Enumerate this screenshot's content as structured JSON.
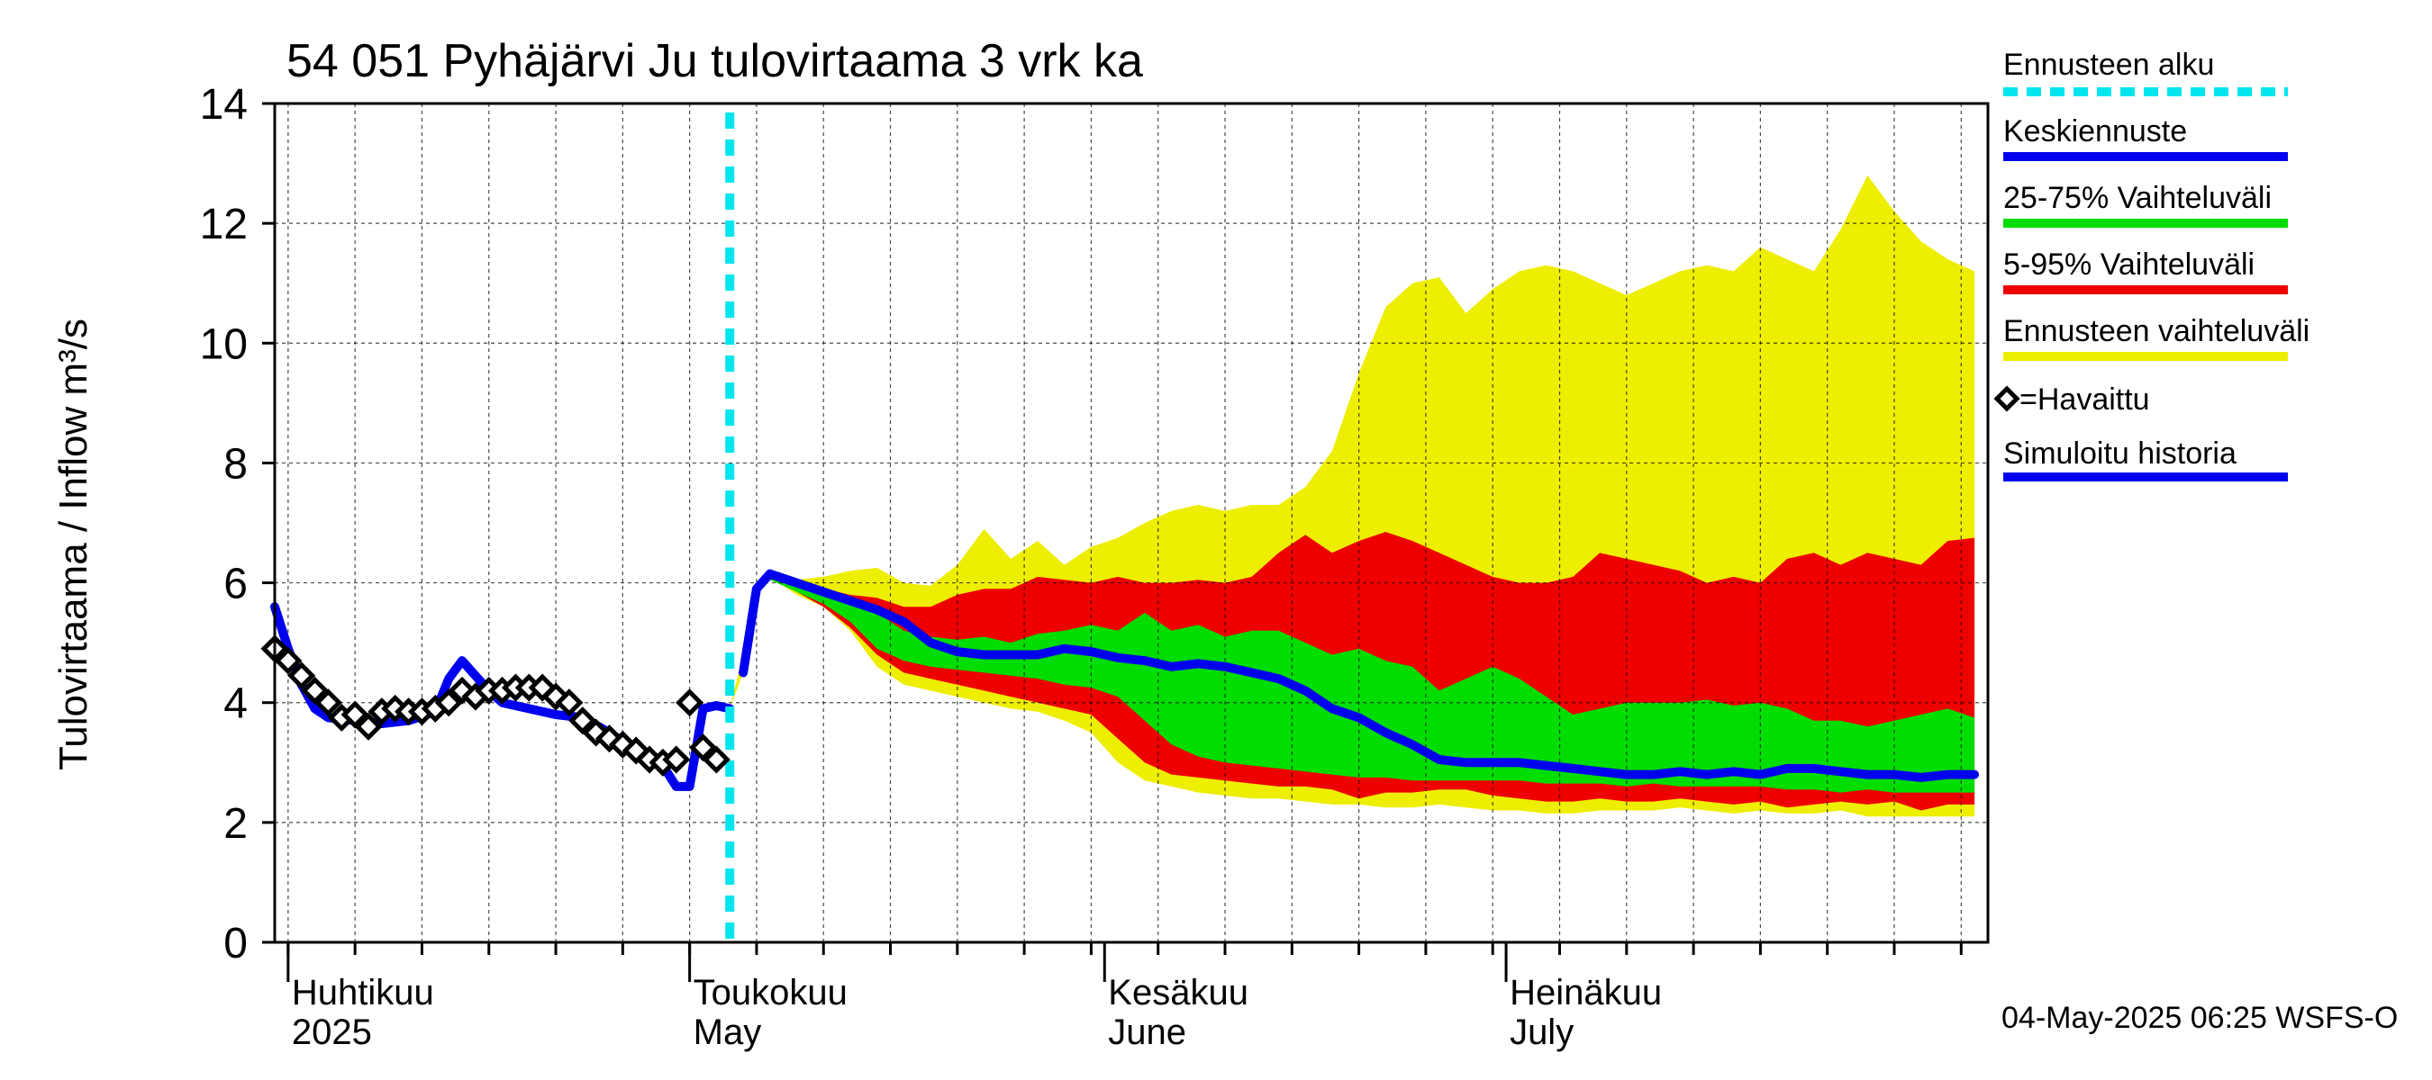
{
  "chart_data": {
    "type": "area",
    "title": "54 051 Pyhäjärvi Ju tulovirtaama 3 vrk ka",
    "ylabel": "Tulovirtaama / Inflow    m³/s",
    "xlabel": "",
    "ylim": [
      0,
      14
    ],
    "yticks": [
      0,
      2,
      4,
      6,
      8,
      10,
      12,
      14
    ],
    "xlim": [
      "2025-03-31",
      "2025-08-06"
    ],
    "grid": true,
    "forecast_start": "2025-05-04",
    "month_labels": [
      {
        "date": "2025-04-01",
        "fi": "Huhtikuu",
        "en": "2025"
      },
      {
        "date": "2025-05-01",
        "fi": "Toukokuu",
        "en": "May"
      },
      {
        "date": "2025-06-01",
        "fi": "Kesäkuu",
        "en": "June"
      },
      {
        "date": "2025-07-01",
        "fi": "Heinäkuu",
        "en": "July"
      }
    ],
    "footer": "04-May-2025 06:25 WSFS-O",
    "legend": {
      "placement": "right",
      "items": [
        {
          "label": "Ennusteen alku",
          "color": "#00e5ee",
          "style": "dashed"
        },
        {
          "label": "Keskiennuste",
          "color": "#0000ee",
          "style": "line"
        },
        {
          "label": "25-75% Vaihteluväli",
          "color": "#00dd00",
          "style": "line"
        },
        {
          "label": "5-95% Vaihteluväli",
          "color": "#ee0000",
          "style": "line"
        },
        {
          "label": "Ennusteen vaihteluväli",
          "color": "#eeee00",
          "style": "line"
        },
        {
          "label": "=Havaittu",
          "color": "#000000",
          "style": "diamond"
        },
        {
          "label": "Simuloitu historia",
          "color": "#0000ee",
          "style": "line"
        }
      ]
    },
    "series": [
      {
        "name": "Ennusteen vaihteluväli",
        "kind": "band",
        "color": "#eeee00",
        "x": [
          "2025-05-04",
          "2025-05-05",
          "2025-05-06",
          "2025-05-07",
          "2025-05-09",
          "2025-05-11",
          "2025-05-13",
          "2025-05-15",
          "2025-05-17",
          "2025-05-19",
          "2025-05-21",
          "2025-05-23",
          "2025-05-25",
          "2025-05-27",
          "2025-05-29",
          "2025-05-31",
          "2025-06-02",
          "2025-06-04",
          "2025-06-06",
          "2025-06-08",
          "2025-06-10",
          "2025-06-12",
          "2025-06-14",
          "2025-06-16",
          "2025-06-18",
          "2025-06-20",
          "2025-06-22",
          "2025-06-24",
          "2025-06-26",
          "2025-06-28",
          "2025-06-30",
          "2025-07-02",
          "2025-07-04",
          "2025-07-06",
          "2025-07-08",
          "2025-07-10",
          "2025-07-12",
          "2025-07-14",
          "2025-07-16",
          "2025-07-18",
          "2025-07-20",
          "2025-07-22",
          "2025-07-24",
          "2025-07-26",
          "2025-07-28",
          "2025-07-30",
          "2025-08-01",
          "2025-08-03",
          "2025-08-05"
        ],
        "upper": [
          3.9,
          4.8,
          5.9,
          6.2,
          6.05,
          6.1,
          6.2,
          6.25,
          6.0,
          5.95,
          6.3,
          6.9,
          6.4,
          6.7,
          6.3,
          6.6,
          6.75,
          7.0,
          7.2,
          7.3,
          7.2,
          7.3,
          7.3,
          7.6,
          8.2,
          9.5,
          10.6,
          11.0,
          11.1,
          10.5,
          10.9,
          11.2,
          11.3,
          11.2,
          11.0,
          10.8,
          11.0,
          11.2,
          11.3,
          11.2,
          11.6,
          11.4,
          11.2,
          11.9,
          12.8,
          12.2,
          11.7,
          11.4,
          11.2
        ],
        "lower": [
          3.9,
          4.5,
          5.8,
          6.1,
          5.8,
          5.6,
          5.2,
          4.6,
          4.3,
          4.2,
          4.1,
          4.0,
          3.9,
          3.85,
          3.7,
          3.5,
          3.0,
          2.7,
          2.6,
          2.5,
          2.45,
          2.4,
          2.4,
          2.35,
          2.3,
          2.3,
          2.25,
          2.25,
          2.3,
          2.25,
          2.2,
          2.2,
          2.15,
          2.15,
          2.2,
          2.2,
          2.2,
          2.25,
          2.2,
          2.15,
          2.2,
          2.15,
          2.15,
          2.2,
          2.1,
          2.1,
          2.1,
          2.1,
          2.1
        ]
      },
      {
        "name": "5-95% Vaihteluväli",
        "kind": "band",
        "color": "#ee0000",
        "x": [
          "2025-05-05",
          "2025-05-06",
          "2025-05-07",
          "2025-05-09",
          "2025-05-11",
          "2025-05-13",
          "2025-05-15",
          "2025-05-17",
          "2025-05-19",
          "2025-05-21",
          "2025-05-23",
          "2025-05-25",
          "2025-05-27",
          "2025-05-29",
          "2025-05-31",
          "2025-06-02",
          "2025-06-04",
          "2025-06-06",
          "2025-06-08",
          "2025-06-10",
          "2025-06-12",
          "2025-06-14",
          "2025-06-16",
          "2025-06-18",
          "2025-06-20",
          "2025-06-22",
          "2025-06-24",
          "2025-06-26",
          "2025-06-28",
          "2025-06-30",
          "2025-07-02",
          "2025-07-04",
          "2025-07-06",
          "2025-07-08",
          "2025-07-10",
          "2025-07-12",
          "2025-07-14",
          "2025-07-16",
          "2025-07-18",
          "2025-07-20",
          "2025-07-22",
          "2025-07-24",
          "2025-07-26",
          "2025-07-28",
          "2025-07-30",
          "2025-08-01",
          "2025-08-03",
          "2025-08-05"
        ],
        "upper": [
          4.6,
          5.85,
          6.15,
          6.0,
          5.9,
          5.8,
          5.75,
          5.6,
          5.6,
          5.8,
          5.9,
          5.9,
          6.1,
          6.05,
          6.0,
          6.1,
          6.0,
          6.0,
          6.05,
          6.0,
          6.1,
          6.5,
          6.8,
          6.5,
          6.7,
          6.85,
          6.7,
          6.5,
          6.3,
          6.1,
          6.0,
          6.0,
          6.1,
          6.5,
          6.4,
          6.3,
          6.2,
          6.0,
          6.1,
          6.0,
          6.4,
          6.5,
          6.3,
          6.5,
          6.4,
          6.3,
          6.7,
          6.75
        ],
        "lower": [
          4.5,
          5.8,
          6.1,
          5.85,
          5.6,
          5.25,
          4.8,
          4.5,
          4.4,
          4.3,
          4.2,
          4.1,
          4.0,
          3.9,
          3.8,
          3.4,
          3.0,
          2.8,
          2.75,
          2.7,
          2.65,
          2.6,
          2.6,
          2.55,
          2.4,
          2.5,
          2.5,
          2.55,
          2.55,
          2.45,
          2.4,
          2.35,
          2.35,
          2.4,
          2.35,
          2.35,
          2.4,
          2.35,
          2.3,
          2.35,
          2.25,
          2.3,
          2.35,
          2.3,
          2.35,
          2.2,
          2.3,
          2.3
        ]
      },
      {
        "name": "25-75% Vaihteluväli",
        "kind": "band",
        "color": "#00dd00",
        "x": [
          "2025-05-05",
          "2025-05-06",
          "2025-05-07",
          "2025-05-09",
          "2025-05-11",
          "2025-05-13",
          "2025-05-15",
          "2025-05-17",
          "2025-05-19",
          "2025-05-21",
          "2025-05-23",
          "2025-05-25",
          "2025-05-27",
          "2025-05-29",
          "2025-05-31",
          "2025-06-02",
          "2025-06-04",
          "2025-06-06",
          "2025-06-08",
          "2025-06-10",
          "2025-06-12",
          "2025-06-14",
          "2025-06-16",
          "2025-06-18",
          "2025-06-20",
          "2025-06-22",
          "2025-06-24",
          "2025-06-26",
          "2025-06-28",
          "2025-06-30",
          "2025-07-02",
          "2025-07-04",
          "2025-07-06",
          "2025-07-08",
          "2025-07-10",
          "2025-07-12",
          "2025-07-14",
          "2025-07-16",
          "2025-07-18",
          "2025-07-20",
          "2025-07-22",
          "2025-07-24",
          "2025-07-26",
          "2025-07-28",
          "2025-07-30",
          "2025-08-01",
          "2025-08-03",
          "2025-08-05"
        ],
        "upper": [
          4.55,
          5.82,
          6.1,
          5.95,
          5.8,
          5.65,
          5.5,
          5.2,
          5.1,
          5.05,
          5.1,
          5.0,
          5.15,
          5.2,
          5.3,
          5.2,
          5.5,
          5.2,
          5.3,
          5.1,
          5.2,
          5.2,
          5.0,
          4.8,
          4.9,
          4.7,
          4.6,
          4.2,
          4.4,
          4.6,
          4.4,
          4.1,
          3.8,
          3.9,
          4.0,
          4.0,
          4.0,
          4.05,
          3.95,
          4.0,
          3.9,
          3.7,
          3.7,
          3.6,
          3.7,
          3.8,
          3.9,
          3.75
        ],
        "lower": [
          4.5,
          5.8,
          6.05,
          5.85,
          5.65,
          5.35,
          4.9,
          4.7,
          4.6,
          4.55,
          4.5,
          4.45,
          4.4,
          4.3,
          4.25,
          4.1,
          3.7,
          3.3,
          3.1,
          3.0,
          2.95,
          2.9,
          2.85,
          2.8,
          2.75,
          2.75,
          2.7,
          2.7,
          2.7,
          2.7,
          2.7,
          2.65,
          2.65,
          2.65,
          2.6,
          2.65,
          2.6,
          2.6,
          2.6,
          2.6,
          2.55,
          2.55,
          2.5,
          2.55,
          2.5,
          2.5,
          2.5,
          2.5
        ]
      },
      {
        "name": "Keskiennuste",
        "kind": "line",
        "color": "#0000ee",
        "x": [
          "2025-05-05",
          "2025-05-06",
          "2025-05-07",
          "2025-05-09",
          "2025-05-11",
          "2025-05-13",
          "2025-05-15",
          "2025-05-17",
          "2025-05-19",
          "2025-05-21",
          "2025-05-23",
          "2025-05-25",
          "2025-05-27",
          "2025-05-29",
          "2025-05-31",
          "2025-06-02",
          "2025-06-04",
          "2025-06-06",
          "2025-06-08",
          "2025-06-10",
          "2025-06-12",
          "2025-06-14",
          "2025-06-16",
          "2025-06-18",
          "2025-06-20",
          "2025-06-22",
          "2025-06-24",
          "2025-06-26",
          "2025-06-28",
          "2025-06-30",
          "2025-07-02",
          "2025-07-04",
          "2025-07-06",
          "2025-07-08",
          "2025-07-10",
          "2025-07-12",
          "2025-07-14",
          "2025-07-16",
          "2025-07-18",
          "2025-07-20",
          "2025-07-22",
          "2025-07-24",
          "2025-07-26",
          "2025-07-28",
          "2025-07-30",
          "2025-08-01",
          "2025-08-03",
          "2025-08-05"
        ],
        "y": [
          4.5,
          5.9,
          6.15,
          6.0,
          5.85,
          5.7,
          5.55,
          5.35,
          5.0,
          4.85,
          4.8,
          4.8,
          4.8,
          4.9,
          4.85,
          4.75,
          4.7,
          4.6,
          4.65,
          4.6,
          4.5,
          4.4,
          4.2,
          3.9,
          3.75,
          3.5,
          3.3,
          3.05,
          3.0,
          3.0,
          3.0,
          2.95,
          2.9,
          2.85,
          2.8,
          2.8,
          2.85,
          2.8,
          2.85,
          2.8,
          2.9,
          2.9,
          2.85,
          2.8,
          2.8,
          2.75,
          2.8,
          2.8
        ]
      },
      {
        "name": "Simuloitu historia",
        "kind": "line",
        "color": "#0000ee",
        "x": [
          "2025-03-31",
          "2025-04-01",
          "2025-04-02",
          "2025-04-03",
          "2025-04-04",
          "2025-04-06",
          "2025-04-08",
          "2025-04-10",
          "2025-04-12",
          "2025-04-13",
          "2025-04-14",
          "2025-04-15",
          "2025-04-16",
          "2025-04-17",
          "2025-04-19",
          "2025-04-21",
          "2025-04-23",
          "2025-04-25",
          "2025-04-27",
          "2025-04-29",
          "2025-04-30",
          "2025-05-01",
          "2025-05-02",
          "2025-05-03",
          "2025-05-04"
        ],
        "y": [
          5.6,
          4.9,
          4.3,
          3.9,
          3.75,
          3.7,
          3.65,
          3.7,
          3.85,
          4.4,
          4.7,
          4.45,
          4.2,
          4.0,
          3.9,
          3.8,
          3.75,
          3.5,
          3.2,
          2.95,
          2.6,
          2.6,
          3.9,
          3.95,
          3.9
        ]
      },
      {
        "name": "=Havaittu",
        "kind": "scatter",
        "color": "#000000",
        "x": [
          "2025-03-31",
          "2025-04-01",
          "2025-04-02",
          "2025-04-03",
          "2025-04-04",
          "2025-04-05",
          "2025-04-06",
          "2025-04-07",
          "2025-04-08",
          "2025-04-09",
          "2025-04-10",
          "2025-04-11",
          "2025-04-12",
          "2025-04-13",
          "2025-04-14",
          "2025-04-15",
          "2025-04-16",
          "2025-04-17",
          "2025-04-18",
          "2025-04-19",
          "2025-04-20",
          "2025-04-21",
          "2025-04-22",
          "2025-04-23",
          "2025-04-24",
          "2025-04-25",
          "2025-04-26",
          "2025-04-27",
          "2025-04-28",
          "2025-04-29",
          "2025-04-30",
          "2025-05-01",
          "2025-05-02",
          "2025-05-03"
        ],
        "y": [
          4.9,
          4.7,
          4.45,
          4.2,
          4.0,
          3.75,
          3.8,
          3.6,
          3.85,
          3.9,
          3.85,
          3.85,
          3.9,
          4.0,
          4.2,
          4.1,
          4.2,
          4.2,
          4.25,
          4.25,
          4.25,
          4.1,
          4.0,
          3.7,
          3.5,
          3.4,
          3.3,
          3.2,
          3.05,
          3.0,
          3.05,
          4.0,
          3.25,
          3.05
        ]
      }
    ]
  }
}
